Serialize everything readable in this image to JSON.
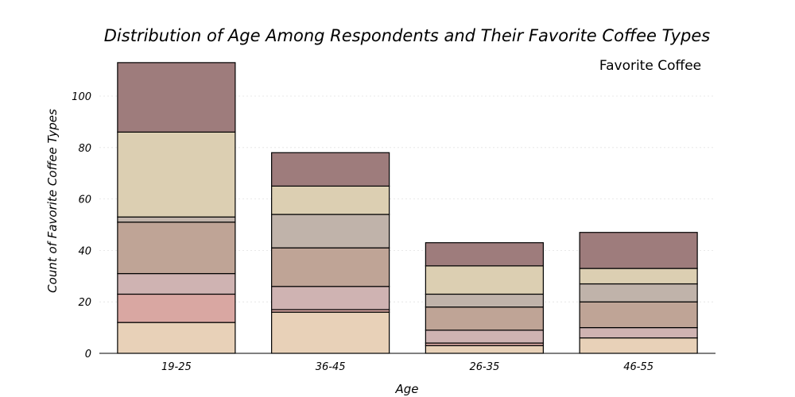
{
  "chart_data": {
    "type": "bar",
    "stacked": true,
    "title": "Distribution of Age Among Respondents and Their Favorite Coffee Types",
    "xlabel": "Age",
    "ylabel": "Count of Favorite Coffee Types",
    "legend_title": "Favorite Coffee",
    "legend_placement": "top-right",
    "grid": true,
    "categories": [
      "19-25",
      "36-45",
      "26-35",
      "46-55"
    ],
    "ylim": [
      0,
      115
    ],
    "yticks": [
      0,
      20,
      40,
      60,
      80,
      100
    ],
    "series": [
      {
        "values": [
          12,
          16,
          3,
          6
        ],
        "color": "#e8d1b8"
      },
      {
        "values": [
          11,
          1,
          1,
          0
        ],
        "color": "#d9a7a2"
      },
      {
        "values": [
          8,
          9,
          5,
          4
        ],
        "color": "#cfb3b2"
      },
      {
        "values": [
          20,
          15,
          9,
          10
        ],
        "color": "#bfa496"
      },
      {
        "values": [
          2,
          13,
          5,
          7
        ],
        "color": "#c0b3aa"
      },
      {
        "values": [
          33,
          11,
          11,
          6
        ],
        "color": "#dccfb2"
      },
      {
        "values": [
          27,
          13,
          9,
          14
        ],
        "color": "#9e7c7c"
      }
    ]
  }
}
